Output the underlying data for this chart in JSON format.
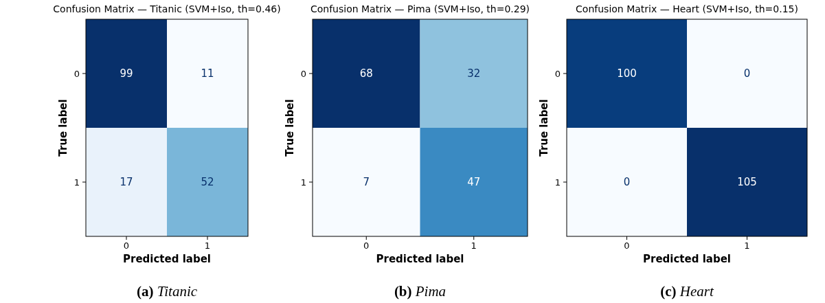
{
  "chart_data": [
    {
      "type": "heatmap",
      "title": "Confusion Matrix — Titanic (SVM+Iso, th=0.46)",
      "xlabel": "Predicted label",
      "ylabel": "True label",
      "categories": [
        "0",
        "1"
      ],
      "y_categories": [
        "0",
        "1"
      ],
      "cells": [
        [
          99,
          11
        ],
        [
          17,
          52
        ]
      ],
      "data_labels": true,
      "annotations": [
        "(a) Titanic"
      ]
    },
    {
      "type": "heatmap",
      "title": "Confusion Matrix — Pima (SVM+Iso, th=0.29)",
      "xlabel": "Predicted label",
      "ylabel": "True label",
      "categories": [
        "0",
        "1"
      ],
      "y_categories": [
        "0",
        "1"
      ],
      "cells": [
        [
          68,
          32
        ],
        [
          7,
          47
        ]
      ],
      "data_labels": true,
      "annotations": [
        "(b) Pima"
      ]
    },
    {
      "type": "heatmap",
      "title": "Confusion Matrix — Heart (SVM+Iso, th=0.15)",
      "xlabel": "Predicted label",
      "ylabel": "True label",
      "categories": [
        "0",
        "1"
      ],
      "y_categories": [
        "0",
        "1"
      ],
      "cells": [
        [
          100,
          0
        ],
        [
          0,
          105
        ]
      ],
      "data_labels": true,
      "annotations": [
        "(c) Heart"
      ]
    }
  ]
}
